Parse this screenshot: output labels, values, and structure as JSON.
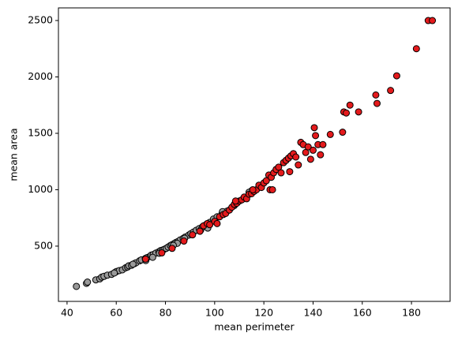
{
  "chart_data": {
    "type": "scatter",
    "xlabel": "mean perimeter",
    "ylabel": "mean area",
    "xlim": [
      36.5,
      195.7
    ],
    "ylim": [
      10,
      2612
    ],
    "xticks": [
      40,
      60,
      80,
      100,
      120,
      140,
      160,
      180
    ],
    "yticks": [
      500,
      1000,
      1500,
      2000,
      2500
    ],
    "edgecolor": "#000000",
    "series": [
      {
        "color": "#999999",
        "x": [
          43.8,
          47.9,
          48.3,
          51.7,
          53.3,
          54.1,
          55.0,
          56.4,
          58.1,
          59.6,
          60.1,
          61.2,
          62.5,
          63.8,
          64.6,
          65.1,
          66.2,
          67.4,
          68.0,
          69.5,
          70.2,
          71.8,
          72.5,
          73.7,
          74.2,
          75.0,
          76.1,
          77.3,
          78.0,
          78.8,
          79.5,
          80.3,
          81.1,
          82.0,
          82.6,
          83.5,
          84.2,
          85.0,
          86.0,
          87.2,
          88.0,
          89.5,
          90.3,
          91.4,
          92.5,
          93.7,
          95.0,
          96.5,
          98.0,
          99.5,
          101,
          103,
          105,
          108,
          112,
          115,
          72,
          77.5,
          84.8,
          87.8,
          94.3,
          97.2,
          83.2,
          74.8,
          66.8,
          59.2,
          103.2,
          114.0
        ],
        "values": [
          143,
          170,
          181,
          201,
          210,
          225,
          232,
          243,
          250,
          268,
          275,
          283,
          290,
          308,
          315,
          326,
          330,
          345,
          352,
          370,
          378,
          390,
          398,
          410,
          420,
          425,
          438,
          450,
          460,
          465,
          472,
          480,
          492,
          505,
          512,
          522,
          532,
          540,
          555,
          568,
          580,
          598,
          610,
          625,
          640,
          655,
          670,
          690,
          710,
          740,
          760,
          790,
          810,
          860,
          930,
          990,
          372,
          437,
          525,
          570,
          642,
          660,
          507,
          401,
          340,
          262,
          806,
          978
        ]
      },
      {
        "color": "#e41a1c",
        "x": [
          71.9,
          78.5,
          82.7,
          87.5,
          91.0,
          94.0,
          95.5,
          97.0,
          98.0,
          100.0,
          101.0,
          102.0,
          103.5,
          104.5,
          106,
          107,
          108,
          109,
          110,
          111,
          112,
          113,
          114,
          115,
          116,
          117,
          118,
          119,
          120,
          121,
          122,
          122.5,
          123,
          124,
          125,
          126,
          127,
          128,
          129,
          130,
          131,
          132,
          133,
          134,
          135,
          136,
          137,
          138,
          139,
          140,
          140.5,
          141,
          142,
          143,
          144,
          147,
          152.5,
          153.5,
          152,
          155,
          158.5,
          165.5,
          166,
          171.5,
          174,
          182,
          186.8,
          188.5,
          108.5,
          115.5,
          130.5,
          123.5
        ],
        "values": [
          385,
          440,
          480,
          545,
          600,
          632,
          680,
          700,
          690,
          720,
          700,
          760,
          780,
          790,
          820,
          845,
          870,
          880,
          900,
          910,
          935,
          920,
          960,
          965,
          985,
          1000,
          1040,
          1020,
          1060,
          1080,
          1130,
          1000,
          1110,
          1150,
          1180,
          1200,
          1150,
          1240,
          1260,
          1280,
          1300,
          1320,
          1290,
          1220,
          1420,
          1400,
          1330,
          1380,
          1270,
          1350,
          1550,
          1480,
          1400,
          1310,
          1400,
          1490,
          1690,
          1680,
          1510,
          1750,
          1690,
          1840,
          1765,
          1880,
          2010,
          2250,
          2500,
          2500,
          900,
          1000,
          1160,
          1000
        ]
      }
    ]
  }
}
